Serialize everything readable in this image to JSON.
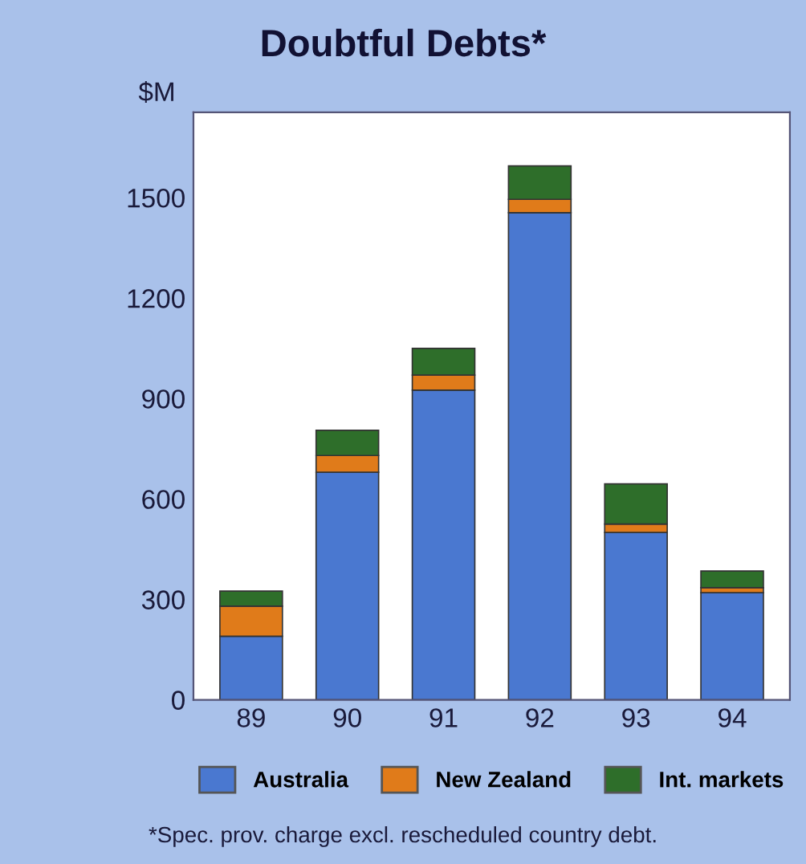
{
  "chart_data": {
    "type": "bar",
    "title": "Doubtful Debts*",
    "ylabel": "$M",
    "categories": [
      "89",
      "90",
      "91",
      "92",
      "93",
      "94"
    ],
    "series": [
      {
        "name": "Australia",
        "color": "#4a78d0",
        "values": [
          190,
          680,
          925,
          1455,
          500,
          320
        ]
      },
      {
        "name": "New Zealand",
        "color": "#e07b1a",
        "values": [
          90,
          50,
          45,
          40,
          25,
          15
        ]
      },
      {
        "name": "Int. markets",
        "color": "#2e6e2a",
        "values": [
          45,
          75,
          80,
          100,
          120,
          50
        ]
      }
    ],
    "stacked": true,
    "ylim": [
      0,
      1755
    ],
    "yticks": [
      0,
      300,
      600,
      900,
      1200,
      1500
    ],
    "grid": false,
    "legend": "bottom",
    "annotations": [
      "*Spec. prov. charge excl. rescheduled country debt."
    ]
  }
}
